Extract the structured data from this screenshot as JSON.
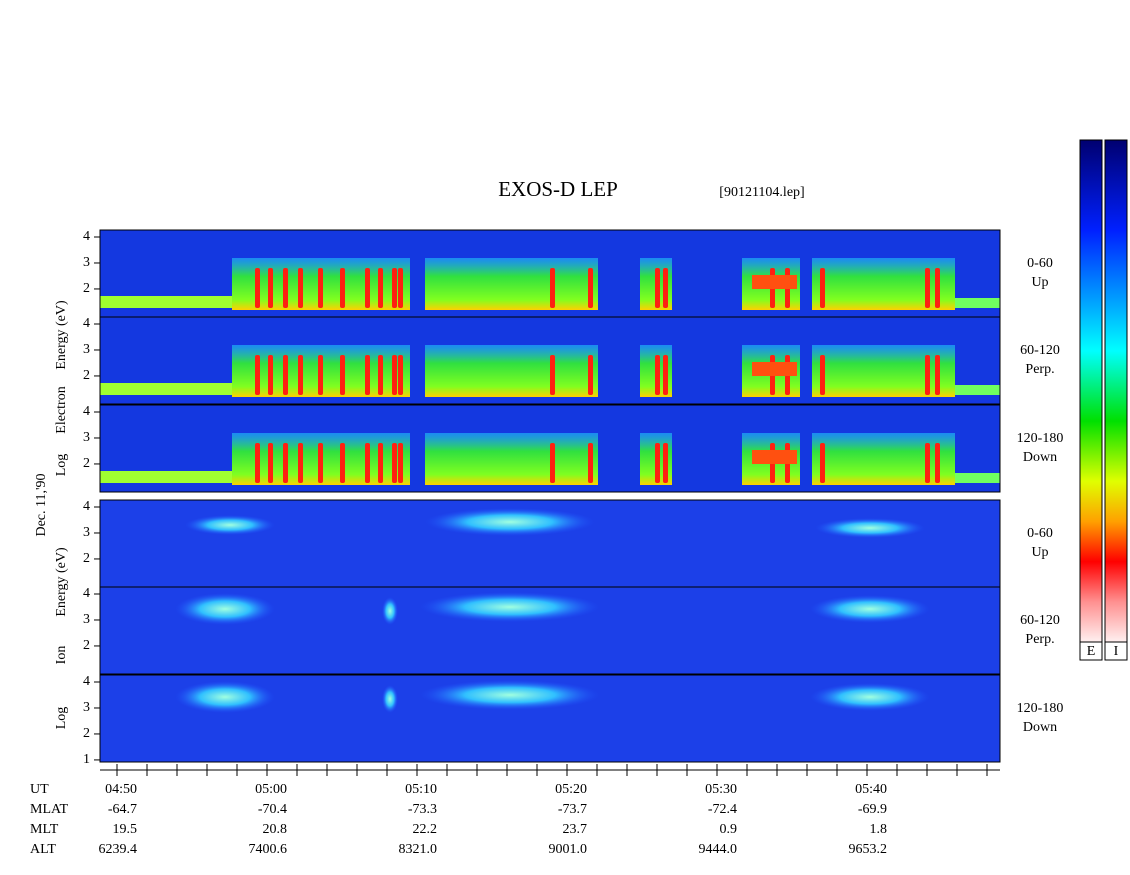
{
  "title": "EXOS-D LEP",
  "file": "[90121104.lep]",
  "date": "Dec. 11,'90",
  "electron_label": [
    "Log",
    "Electron",
    "Energy (eV)"
  ],
  "ion_label": [
    "Log",
    "Ion",
    "Energy (eV)"
  ],
  "ylim": [
    0.92,
    4.27
  ],
  "panels": [
    {
      "species": "electron",
      "pitch": "0-60",
      "direction": "Up",
      "yticks": [
        2,
        3,
        4
      ]
    },
    {
      "species": "electron",
      "pitch": "60-120",
      "direction": "Perp.",
      "yticks": [
        2,
        3,
        4
      ]
    },
    {
      "species": "electron",
      "pitch": "120-180",
      "direction": "Down",
      "yticks": [
        2,
        3,
        4
      ]
    },
    {
      "species": "ion",
      "pitch": "0-60",
      "direction": "Up",
      "yticks": [
        2,
        3,
        4
      ]
    },
    {
      "species": "ion",
      "pitch": "60-120",
      "direction": "Perp.",
      "yticks": [
        2,
        3,
        4
      ]
    },
    {
      "species": "ion",
      "pitch": "120-180",
      "direction": "Down",
      "yticks": [
        1,
        2,
        3,
        4
      ]
    }
  ],
  "colorbars": [
    "E",
    "I"
  ],
  "orbit": [
    {
      "label": "UT",
      "values": [
        "04:50",
        "05:00",
        "05:10",
        "05:20",
        "05:30",
        "05:40"
      ]
    },
    {
      "label": "MLAT",
      "values": [
        "-64.7",
        "-70.4",
        "-73.3",
        "-73.7",
        "-72.4",
        "-69.9"
      ]
    },
    {
      "label": "MLT",
      "values": [
        "19.5",
        "20.8",
        "22.2",
        "23.7",
        "0.9",
        "1.8"
      ]
    },
    {
      "label": "ALT",
      "values": [
        "6239.4",
        "7400.6",
        "8321.0",
        "9001.0",
        "9444.0",
        "9653.2"
      ]
    }
  ]
}
